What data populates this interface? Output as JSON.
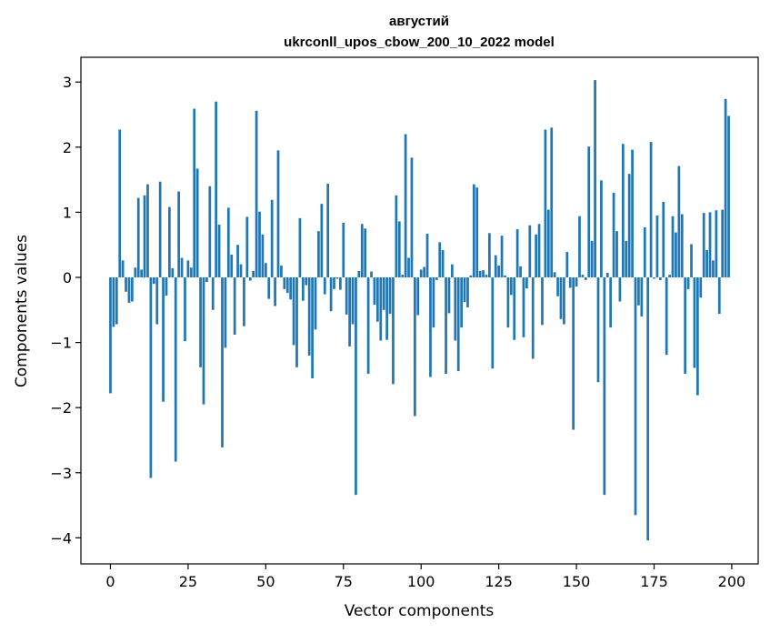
{
  "chart_data": {
    "type": "bar",
    "title": "августий",
    "subtitle": "ukrconll_upos_cbow_200_10_2022 model",
    "xlabel": "Vector components",
    "ylabel": "Components values",
    "xlim": [
      -9.5,
      208.5
    ],
    "ylim": [
      -4.4,
      3.38
    ],
    "xticks": [
      0,
      25,
      50,
      75,
      100,
      125,
      150,
      175,
      200
    ],
    "yticks": [
      -4,
      -3,
      -2,
      -1,
      0,
      1,
      2,
      3
    ],
    "grid": false,
    "legend": "none",
    "bar_color": "#1f77b4",
    "x": [
      0,
      1,
      2,
      3,
      4,
      5,
      6,
      7,
      8,
      9,
      10,
      11,
      12,
      13,
      14,
      15,
      16,
      17,
      18,
      19,
      20,
      21,
      22,
      23,
      24,
      25,
      26,
      27,
      28,
      29,
      30,
      31,
      32,
      33,
      34,
      35,
      36,
      37,
      38,
      39,
      40,
      41,
      42,
      43,
      44,
      45,
      46,
      47,
      48,
      49,
      50,
      51,
      52,
      53,
      54,
      55,
      56,
      57,
      58,
      59,
      60,
      61,
      62,
      63,
      64,
      65,
      66,
      67,
      68,
      69,
      70,
      71,
      72,
      73,
      74,
      75,
      76,
      77,
      78,
      79,
      80,
      81,
      82,
      83,
      84,
      85,
      86,
      87,
      88,
      89,
      90,
      91,
      92,
      93,
      94,
      95,
      96,
      97,
      98,
      99,
      100,
      101,
      102,
      103,
      104,
      105,
      106,
      107,
      108,
      109,
      110,
      111,
      112,
      113,
      114,
      115,
      116,
      117,
      118,
      119,
      120,
      121,
      122,
      123,
      124,
      125,
      126,
      127,
      128,
      129,
      130,
      131,
      132,
      133,
      134,
      135,
      136,
      137,
      138,
      139,
      140,
      141,
      142,
      143,
      144,
      145,
      146,
      147,
      148,
      149,
      150,
      151,
      152,
      153,
      154,
      155,
      156,
      157,
      158,
      159,
      160,
      161,
      162,
      163,
      164,
      165,
      166,
      167,
      168,
      169,
      170,
      171,
      172,
      173,
      174,
      175,
      176,
      177,
      178,
      179,
      180,
      181,
      182,
      183,
      184,
      185,
      186,
      187,
      188,
      189,
      190,
      191,
      192,
      193,
      194,
      195,
      196,
      197,
      198,
      199
    ],
    "values": [
      -1.78,
      -0.76,
      -0.72,
      2.27,
      0.26,
      -0.22,
      -0.39,
      -0.37,
      0.15,
      1.22,
      0.12,
      1.26,
      1.43,
      -3.08,
      -0.1,
      -0.72,
      1.47,
      -1.91,
      -0.28,
      1.08,
      0.14,
      -2.83,
      1.32,
      0.3,
      -0.98,
      0.26,
      0.15,
      2.59,
      1.67,
      -1.38,
      -1.95,
      -0.07,
      1.4,
      -0.5,
      2.7,
      0.81,
      -2.61,
      -1.08,
      1.07,
      0.35,
      -0.88,
      0.5,
      0.2,
      -0.75,
      0.93,
      -0.05,
      0.1,
      2.56,
      1.01,
      0.66,
      0.22,
      -0.33,
      1.19,
      -0.44,
      1.95,
      0.18,
      -0.18,
      -0.24,
      -0.34,
      -1.04,
      -1.38,
      0.91,
      -0.36,
      -0.12,
      -1.2,
      -1.55,
      -0.8,
      0.71,
      1.13,
      -0.26,
      1.44,
      -0.52,
      -0.18,
      -0.02,
      -0.19,
      0.84,
      -0.57,
      -1.06,
      -0.72,
      -3.34,
      0.1,
      0.82,
      0.75,
      -1.48,
      0.09,
      -0.42,
      -0.68,
      -0.97,
      -0.5,
      -0.96,
      -0.56,
      -1.64,
      1.26,
      0.86,
      0.04,
      2.2,
      0.3,
      1.84,
      -2.13,
      -0.58,
      0.12,
      0.16,
      0.67,
      -1.53,
      -0.77,
      -0.04,
      0.54,
      0.42,
      -1.48,
      -0.55,
      0.2,
      -0.97,
      -1.44,
      -0.77,
      -0.38,
      -0.46,
      0.03,
      1.43,
      1.38,
      0.1,
      0.11,
      0.04,
      0.68,
      -1.4,
      0.34,
      0.18,
      0.64,
      0.03,
      -0.77,
      -0.27,
      -0.96,
      0.74,
      0.17,
      -0.92,
      -0.17,
      0.8,
      -1.25,
      0.66,
      0.82,
      -0.73,
      2.27,
      1.04,
      2.3,
      0.08,
      -0.29,
      -0.64,
      -0.72,
      0.39,
      -0.16,
      -2.34,
      -0.14,
      0.94,
      0.04,
      -0.04,
      2.01,
      0.56,
      3.03,
      -1.61,
      1.49,
      -3.34,
      0.07,
      -0.77,
      1.3,
      0.71,
      -0.37,
      2.05,
      0.56,
      1.59,
      1.96,
      -3.65,
      -0.43,
      -0.6,
      0.77,
      -4.04,
      2.08,
      -0.02,
      0.95,
      -0.04,
      1.16,
      -1.19,
      0.04,
      0.94,
      0.69,
      1.71,
      0.97,
      -1.48,
      -0.18,
      0.51,
      -1.39,
      -1.81,
      -0.31,
      0.99,
      0.42,
      1.0,
      0.26,
      1.03,
      -0.56,
      1.04,
      2.74,
      2.48
    ]
  }
}
